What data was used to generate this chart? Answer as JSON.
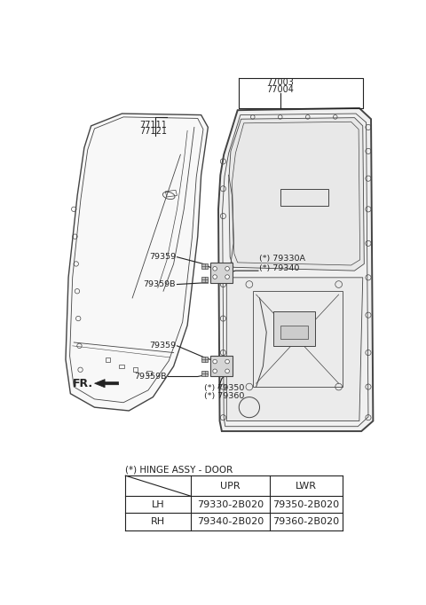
{
  "bg_color": "#ffffff",
  "lc": "#444444",
  "blue": "#2c5f8a",
  "tc": "#222222",
  "table_title": "(*) HINGE ASSY - DOOR",
  "col_headers": [
    "UPR",
    "LWR"
  ],
  "row_headers": [
    "LH",
    "RH"
  ],
  "table_data": [
    [
      "79330-2B020",
      "79350-2B020"
    ],
    [
      "79340-2B020",
      "79360-2B020"
    ]
  ]
}
